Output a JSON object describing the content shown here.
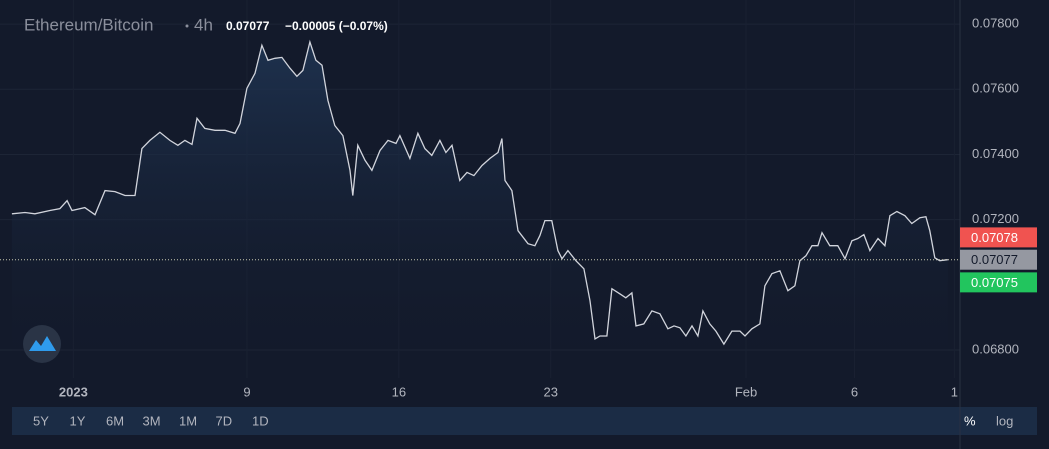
{
  "chart_data": {
    "type": "line",
    "title": "Ethereum/Bitcoin",
    "interval": "4h",
    "last": 0.07077,
    "change": "−0.00005 (−0.07%)",
    "x": [
      -2.83,
      -2.23,
      -1.77,
      -1.08,
      -0.62,
      -0.29,
      -0.06,
      0.53,
      1.0,
      1.46,
      1.92,
      2.38,
      2.84,
      3.16,
      3.53,
      3.99,
      4.45,
      4.82,
      5.14,
      5.47,
      5.7,
      6.06,
      6.53,
      6.99,
      7.45,
      7.68,
      8.0,
      8.37,
      8.69,
      8.97,
      9.29,
      9.61,
      9.98,
      10.3,
      10.58,
      10.9,
      11.18,
      11.46,
      11.73,
      12.05,
      12.42,
      12.75,
      12.88,
      13.11,
      13.44,
      13.76,
      14.13,
      14.5,
      14.87,
      15.05,
      15.51,
      15.88,
      16.2,
      16.52,
      16.89,
      17.17,
      17.45,
      17.81,
      18.14,
      18.46,
      18.83,
      19.2,
      19.57,
      19.75,
      19.89,
      20.21,
      20.49,
      20.95,
      21.27,
      21.5,
      21.73,
      22.05,
      22.33,
      22.52,
      22.79,
      23.16,
      23.53,
      23.81,
      24.04,
      24.27,
      24.59,
      24.82,
      25.19,
      25.46,
      25.74,
      25.93,
      26.29,
      26.66,
      27.03,
      27.4,
      27.68,
      27.95,
      28.23,
      28.51,
      28.78,
      29.01,
      29.33,
      29.61,
      29.98,
      30.35,
      30.72,
      30.95,
      31.27,
      31.64,
      31.87,
      32.19,
      32.56,
      32.93,
      33.25,
      33.48,
      33.76,
      34.04,
      34.31,
      34.5,
      34.86,
      35.23,
      35.56,
      35.88,
      36.15,
      36.43,
      36.71,
      37.08,
      37.4,
      37.63,
      37.95,
      38.32,
      38.64,
      39.01,
      39.29,
      39.47,
      39.7,
      39.93,
      40.3
    ],
    "series": [
      {
        "name": "Ethereum/Bitcoin",
        "color": "#d1d4dc",
        "values": [
          0.07218,
          0.07222,
          0.07218,
          0.07228,
          0.07234,
          0.07258,
          0.07228,
          0.07237,
          0.07215,
          0.07289,
          0.07286,
          0.07274,
          0.07274,
          0.07418,
          0.07443,
          0.07468,
          0.07443,
          0.07428,
          0.07443,
          0.07431,
          0.07511,
          0.0748,
          0.07474,
          0.07474,
          0.07465,
          0.07495,
          0.07603,
          0.07649,
          0.07735,
          0.07689,
          0.07695,
          0.07698,
          0.07665,
          0.0764,
          0.07658,
          0.07745,
          0.07689,
          0.07674,
          0.07566,
          0.07489,
          0.07458,
          0.07351,
          0.07274,
          0.07428,
          0.07382,
          0.07351,
          0.07412,
          0.07443,
          0.07434,
          0.07458,
          0.07388,
          0.07465,
          0.07418,
          0.07397,
          0.07443,
          0.07406,
          0.07428,
          0.0732,
          0.07345,
          0.07335,
          0.07366,
          0.07388,
          0.07406,
          0.07449,
          0.0732,
          0.07289,
          0.07166,
          0.07126,
          0.0712,
          0.07151,
          0.07197,
          0.07197,
          0.07105,
          0.0708,
          0.07105,
          0.07074,
          0.07049,
          0.06951,
          0.06834,
          0.06843,
          0.06843,
          0.06988,
          0.06972,
          0.0696,
          0.06975,
          0.06874,
          0.0688,
          0.0692,
          0.06911,
          0.06865,
          0.06874,
          0.06868,
          0.06843,
          0.06874,
          0.06843,
          0.0692,
          0.0688,
          0.06858,
          0.06818,
          0.06858,
          0.06858,
          0.06843,
          0.06865,
          0.0688,
          0.06997,
          0.07034,
          0.07043,
          0.06982,
          0.06997,
          0.07074,
          0.07089,
          0.0712,
          0.0712,
          0.0716,
          0.0712,
          0.0712,
          0.0708,
          0.07135,
          0.07142,
          0.07154,
          0.07105,
          0.07142,
          0.0712,
          0.07212,
          0.07225,
          0.07212,
          0.07188,
          0.07206,
          0.07209,
          0.07166,
          0.07083,
          0.07074,
          0.07077
        ]
      }
    ],
    "xlim": [
      -3.38,
      40.86
    ],
    "xticks": [
      {
        "value": 0,
        "label": "2023"
      },
      {
        "value": 8,
        "label": "9"
      },
      {
        "value": 15,
        "label": "16"
      },
      {
        "value": 22,
        "label": "23"
      },
      {
        "value": 31,
        "label": "Feb"
      },
      {
        "value": 36,
        "label": "6"
      },
      {
        "value": 40.6,
        "label": "1"
      }
    ],
    "ylim": [
      0.06714,
      0.07874
    ],
    "yticks": [
      {
        "value": 0.068,
        "label": "0.06800"
      },
      {
        "value": 0.072,
        "label": "0.07200"
      },
      {
        "value": 0.074,
        "label": "0.07400"
      },
      {
        "value": 0.076,
        "label": "0.07600"
      },
      {
        "value": 0.078,
        "label": "0.07800"
      }
    ],
    "grid": true,
    "log_scale": false,
    "price_markers": [
      {
        "value": 0.07078,
        "color": "#f05350"
      },
      {
        "value": 0.07077,
        "color": "#9598a1"
      },
      {
        "value": 0.07075,
        "color": "#22c55e"
      }
    ],
    "ranges": [
      "5Y",
      "1Y",
      "6M",
      "3M",
      "1M",
      "7D",
      "1D"
    ],
    "scale_buttons": [
      "%",
      "log"
    ]
  }
}
